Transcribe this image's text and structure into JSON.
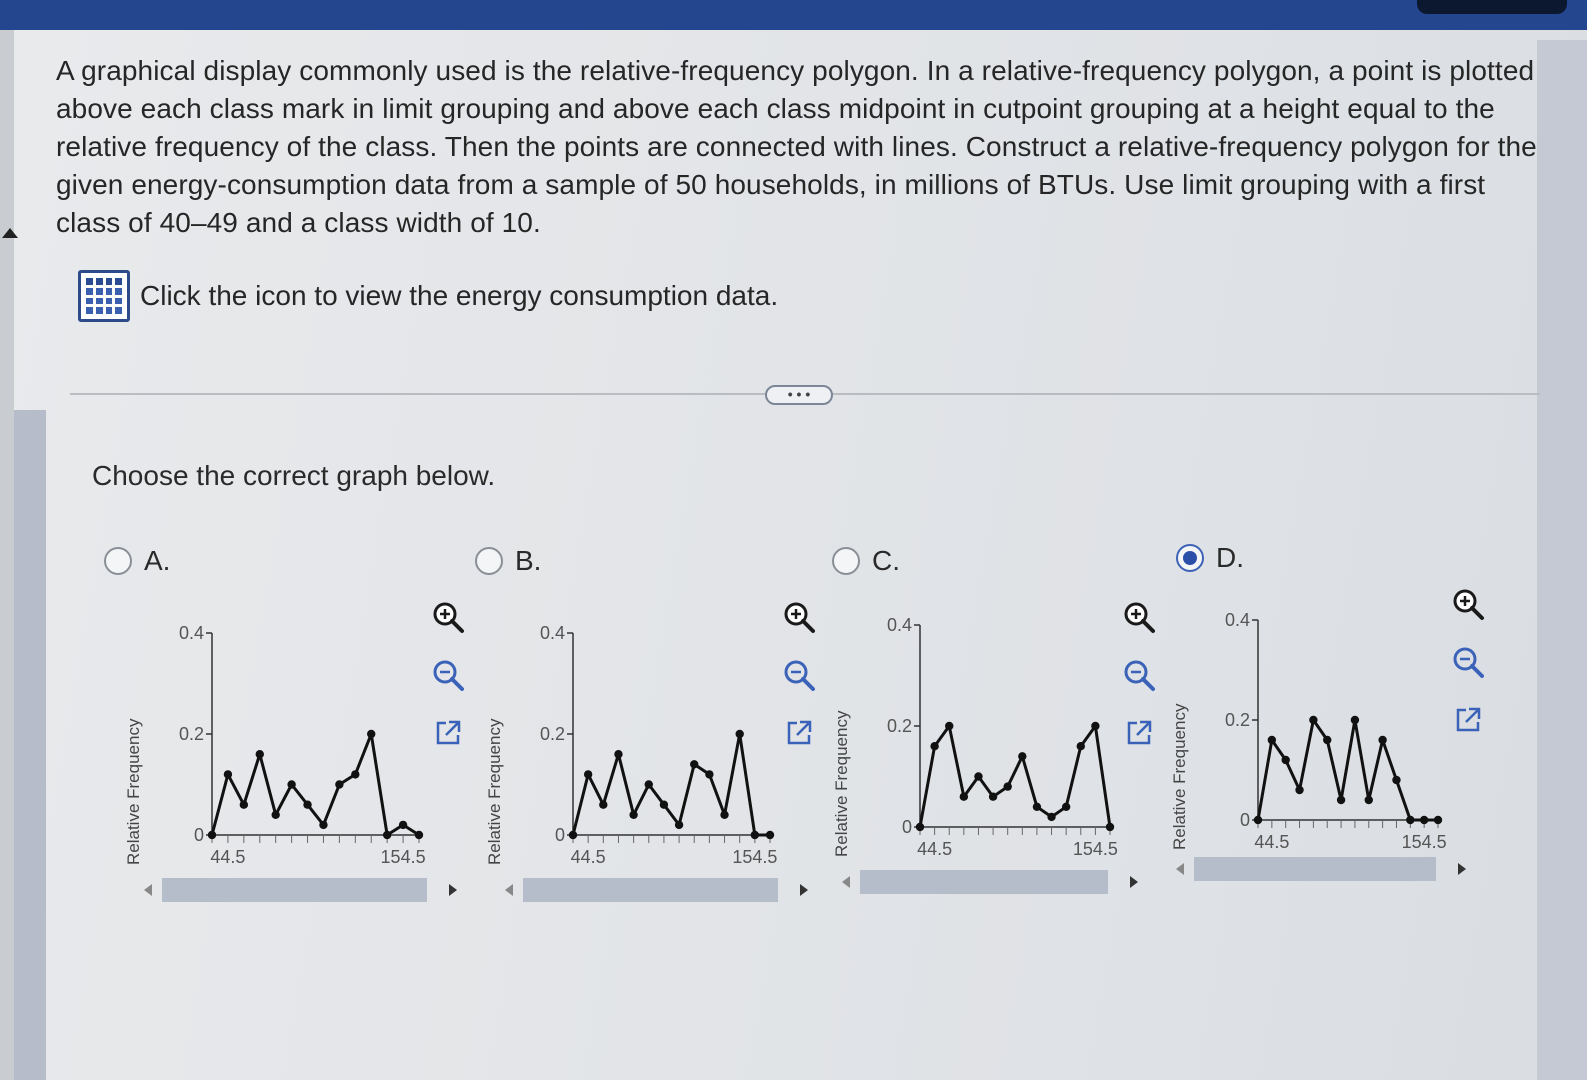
{
  "question_text": "A graphical display commonly used is the relative-frequency polygon. In a relative-frequency polygon, a point is plotted above each class mark in limit grouping and above each class midpoint in cutpoint grouping at a height equal to the relative frequency of the class. Then the points are connected with lines. Construct a relative-frequency polygon for the given energy-consumption data from a sample of 50 households, in millions of BTUs. Use limit grouping with a first class of 40–49 and a class width of 10.",
  "data_link_label": "Click the icon to view the energy consumption data.",
  "more_button_label": "• • •",
  "prompt_text": "Choose the correct graph below.",
  "colors": {
    "accent": "#2b4fa8",
    "line": "#111111",
    "header": "#24468f"
  },
  "icons": {
    "data": "table-grid-icon",
    "zoom_in": "zoom-in-icon",
    "zoom_out": "zoom-out-icon",
    "popout": "popout-icon"
  },
  "chart_data": [
    {
      "type": "line",
      "option": "A.",
      "selected": false,
      "ylabel": "Relative Frequency",
      "y_ticks": [
        "0",
        "0.2",
        "0.4"
      ],
      "x_ticks": [
        "44.5",
        "154.5"
      ],
      "ylim": [
        0,
        0.4
      ],
      "x": [
        34.5,
        44.5,
        54.5,
        64.5,
        74.5,
        84.5,
        94.5,
        104.5,
        114.5,
        124.5,
        134.5,
        144.5,
        154.5,
        164.5
      ],
      "y": [
        0.0,
        0.12,
        0.06,
        0.16,
        0.04,
        0.1,
        0.06,
        0.02,
        0.1,
        0.12,
        0.2,
        0.0,
        0.02,
        0.0
      ]
    },
    {
      "type": "line",
      "option": "B.",
      "selected": false,
      "ylabel": "Relative Frequency",
      "y_ticks": [
        "0",
        "0.2",
        "0.4"
      ],
      "x_ticks": [
        "44.5",
        "154.5"
      ],
      "ylim": [
        0,
        0.4
      ],
      "x": [
        34.5,
        44.5,
        54.5,
        64.5,
        74.5,
        84.5,
        94.5,
        104.5,
        114.5,
        124.5,
        134.5,
        144.5,
        154.5,
        164.5
      ],
      "y": [
        0.0,
        0.12,
        0.06,
        0.16,
        0.04,
        0.1,
        0.06,
        0.02,
        0.14,
        0.12,
        0.04,
        0.2,
        0.0,
        0.0
      ]
    },
    {
      "type": "line",
      "option": "C.",
      "selected": false,
      "ylabel": "Relative Frequency",
      "y_ticks": [
        "0",
        "0.2",
        "0.4"
      ],
      "x_ticks": [
        "44.5",
        "154.5"
      ],
      "ylim": [
        0,
        0.4
      ],
      "x": [
        34.5,
        44.5,
        54.5,
        64.5,
        74.5,
        84.5,
        94.5,
        104.5,
        114.5,
        124.5,
        134.5,
        144.5,
        154.5,
        164.5
      ],
      "y": [
        0.0,
        0.16,
        0.2,
        0.06,
        0.1,
        0.06,
        0.08,
        0.14,
        0.04,
        0.02,
        0.04,
        0.16,
        0.2,
        0.0
      ]
    },
    {
      "type": "line",
      "option": "D.",
      "selected": true,
      "ylabel": "Relative Frequency",
      "y_ticks": [
        "0",
        "0.2",
        "0.4"
      ],
      "x_ticks": [
        "44.5",
        "154.5"
      ],
      "ylim": [
        0,
        0.4
      ],
      "x": [
        34.5,
        44.5,
        54.5,
        64.5,
        74.5,
        84.5,
        94.5,
        104.5,
        114.5,
        124.5,
        134.5,
        144.5,
        154.5,
        164.5
      ],
      "y": [
        0.0,
        0.16,
        0.12,
        0.06,
        0.2,
        0.16,
        0.04,
        0.2,
        0.04,
        0.16,
        0.08,
        0.0,
        0.0,
        0.0
      ]
    }
  ]
}
